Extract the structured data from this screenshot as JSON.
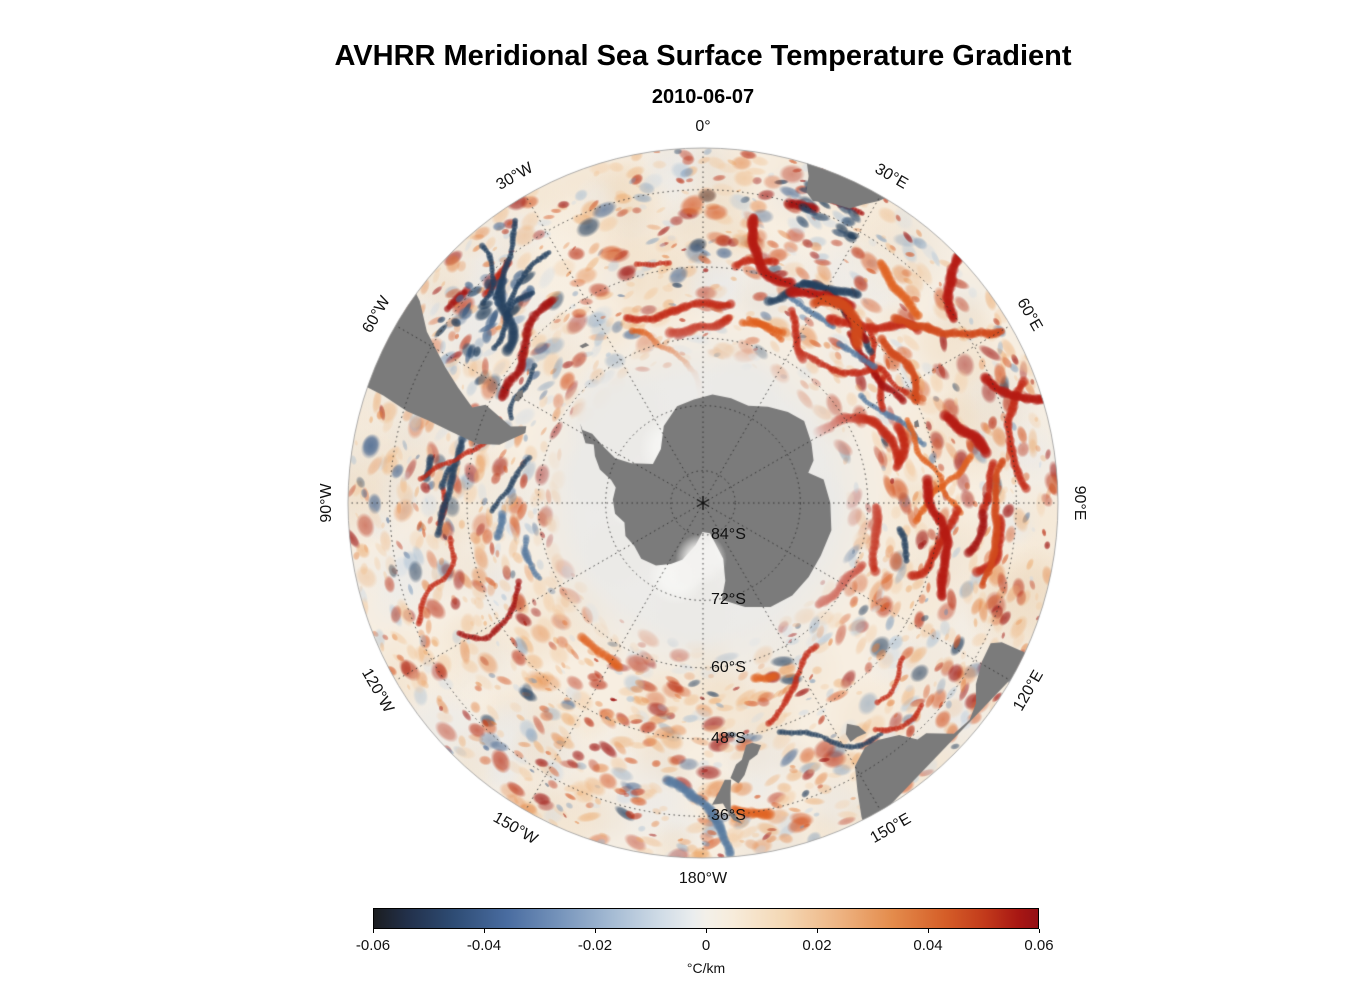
{
  "figure": {
    "title": "AVHRR Meridional Sea Surface Temperature Gradient",
    "subtitle": "2010-06-07"
  },
  "map": {
    "projection": "South polar stereographic, 0° longitude at top, boundary near 30°S",
    "pole_marker": "asterisk",
    "colors": {
      "ocean_base": "#f7eee1",
      "ice": "#ebeae7",
      "ice_bright": "#f8f8f6",
      "land": "#7b7b7b",
      "graticule": "#2a2a2a",
      "rim": "#999999"
    },
    "longitude_labels": [
      {
        "text": "0°",
        "azimuth_deg": 0
      },
      {
        "text": "30°E",
        "azimuth_deg": 30
      },
      {
        "text": "60°E",
        "azimuth_deg": 60
      },
      {
        "text": "90°E",
        "azimuth_deg": 90
      },
      {
        "text": "120°E",
        "azimuth_deg": 120
      },
      {
        "text": "150°E",
        "azimuth_deg": 150
      },
      {
        "text": "180°W",
        "azimuth_deg": 180
      },
      {
        "text": "150°W",
        "azimuth_deg": -150
      },
      {
        "text": "120°W",
        "azimuth_deg": -120
      },
      {
        "text": "90°W",
        "azimuth_deg": -90
      },
      {
        "text": "60°W",
        "azimuth_deg": -60
      },
      {
        "text": "30°W",
        "azimuth_deg": -30
      }
    ],
    "latitude_labels": [
      {
        "text": "84°S",
        "latitude_deg": -84
      },
      {
        "text": "72°S",
        "latitude_deg": -72
      },
      {
        "text": "60°S",
        "latitude_deg": -60
      },
      {
        "text": "48°S",
        "latitude_deg": -48
      },
      {
        "text": "36°S",
        "latitude_deg": -36
      }
    ],
    "graticule": {
      "latitude_rings_deg": [
        -84,
        -72,
        -60,
        -48,
        -36
      ],
      "longitude_step_deg": 30
    },
    "land": {
      "antarctica": [
        [
          -57,
          -63.2
        ],
        [
          -60,
          -64.5
        ],
        [
          -63,
          -65.8
        ],
        [
          -61.8,
          -67.2
        ],
        [
          -66.5,
          -68.3
        ],
        [
          -72,
          -70
        ],
        [
          -76,
          -72.5
        ],
        [
          -80,
          -73.6
        ],
        [
          -88,
          -73.3
        ],
        [
          -97,
          -73.6
        ],
        [
          -104,
          -75
        ],
        [
          -113,
          -74.4
        ],
        [
          -122,
          -75
        ],
        [
          -132,
          -74.6
        ],
        [
          -143,
          -75.5
        ],
        [
          -152,
          -77.2
        ],
        [
          -160,
          -78.8
        ],
        [
          -170,
          -82
        ],
        [
          -179,
          -84.6
        ],
        [
          167,
          -84.2
        ],
        [
          160,
          -79
        ],
        [
          164,
          -75
        ],
        [
          169,
          -71.8
        ],
        [
          158,
          -69.3
        ],
        [
          147,
          -67.2
        ],
        [
          136,
          -66.4
        ],
        [
          125,
          -66.3
        ],
        [
          114,
          -66.3
        ],
        [
          102,
          -65.9
        ],
        [
          90,
          -66.6
        ],
        [
          79,
          -67.4
        ],
        [
          74,
          -69.8
        ],
        [
          69,
          -68.2
        ],
        [
          61,
          -67.2
        ],
        [
          51,
          -66.1
        ],
        [
          43,
          -67.1
        ],
        [
          34,
          -68.6
        ],
        [
          25,
          -70.2
        ],
        [
          15,
          -70
        ],
        [
          5,
          -69.9
        ],
        [
          -5,
          -70.8
        ],
        [
          -15,
          -71.5
        ],
        [
          -27,
          -74
        ],
        [
          -38,
          -77.3
        ],
        [
          -52,
          -78.2
        ],
        [
          -61,
          -74.8
        ],
        [
          -63,
          -71.8
        ],
        [
          -60.5,
          -69
        ],
        [
          -58,
          -66
        ],
        [
          -58.8,
          -64.2
        ]
      ],
      "south_america": [
        [
          -70.8,
          -29
        ],
        [
          -71.4,
          -32.5
        ],
        [
          -72.8,
          -36.5
        ],
        [
          -73.3,
          -40
        ],
        [
          -74.2,
          -44
        ],
        [
          -75.3,
          -48.5
        ],
        [
          -74,
          -52
        ],
        [
          -71,
          -54
        ],
        [
          -68.5,
          -55.5
        ],
        [
          -66.5,
          -55.2
        ],
        [
          -68.3,
          -52.8
        ],
        [
          -65.7,
          -47.6
        ],
        [
          -67.5,
          -45.8
        ],
        [
          -64.8,
          -42.5
        ],
        [
          -62.2,
          -39.3
        ],
        [
          -58.2,
          -34.3
        ],
        [
          -54.5,
          -31
        ],
        [
          -53.3,
          -29
        ]
      ],
      "falkland_islands": [
        [
          -61.5,
          -51.4
        ],
        [
          -59.2,
          -51.2
        ],
        [
          -57.8,
          -51.8
        ],
        [
          -59.3,
          -52.4
        ],
        [
          -61.2,
          -52.2
        ]
      ],
      "south_georgia": [
        [
          -38.2,
          -54
        ],
        [
          -36.2,
          -54.2
        ],
        [
          -35.8,
          -54.9
        ],
        [
          -37.9,
          -54.6
        ]
      ],
      "africa": [
        [
          16.3,
          -28.6
        ],
        [
          17.9,
          -31.6
        ],
        [
          18.4,
          -33.9
        ],
        [
          20,
          -34.8
        ],
        [
          23.4,
          -34.1
        ],
        [
          26.5,
          -33.7
        ],
        [
          28.1,
          -32.4
        ],
        [
          30.2,
          -30.8
        ],
        [
          31.4,
          -29.3
        ],
        [
          32.2,
          -28.5
        ]
      ],
      "kerguelen": [
        [
          68.8,
          -48.9
        ],
        [
          70.6,
          -49.1
        ],
        [
          70.3,
          -49.8
        ],
        [
          69,
          -49.6
        ]
      ],
      "australia": [
        [
          114.9,
          -28.8
        ],
        [
          115,
          -33.6
        ],
        [
          116,
          -35
        ],
        [
          119.5,
          -34.9
        ],
        [
          123.6,
          -33.9
        ],
        [
          126.3,
          -32.3
        ],
        [
          129.1,
          -31.6
        ],
        [
          132.6,
          -32
        ],
        [
          135.9,
          -34.9
        ],
        [
          137.8,
          -35.1
        ],
        [
          139.8,
          -37.4
        ],
        [
          143.6,
          -38.8
        ],
        [
          146.5,
          -39
        ],
        [
          150,
          -37.4
        ],
        [
          151.8,
          -34
        ],
        [
          153.2,
          -30.5
        ],
        [
          153.6,
          -28.5
        ]
      ],
      "tasmania": [
        [
          144.6,
          -40.7
        ],
        [
          146.6,
          -41
        ],
        [
          148.3,
          -40.9
        ],
        [
          148.3,
          -42.3
        ],
        [
          146.9,
          -43.6
        ],
        [
          145.1,
          -42.3
        ]
      ],
      "new_zealand_south": [
        [
          166.5,
          -45.9
        ],
        [
          168.4,
          -46.6
        ],
        [
          169.9,
          -46.4
        ],
        [
          171.4,
          -44.2
        ],
        [
          172.8,
          -43.6
        ],
        [
          174.3,
          -41.6
        ],
        [
          172.8,
          -40.6
        ],
        [
          171.3,
          -41.8
        ],
        [
          169.8,
          -43.9
        ],
        [
          167.8,
          -44.6
        ]
      ],
      "new_zealand_north": [
        [
          174.2,
          -41.3
        ],
        [
          175.5,
          -41.4
        ],
        [
          177,
          -39.4
        ],
        [
          178.3,
          -37.7
        ],
        [
          176.2,
          -37.8
        ],
        [
          175.3,
          -36.3
        ],
        [
          174.5,
          -35.2
        ],
        [
          173,
          -34.5
        ],
        [
          174.8,
          -37
        ],
        [
          174.6,
          -39.2
        ]
      ]
    }
  },
  "colorbar": {
    "min": -0.06,
    "max": 0.06,
    "label": "°C/km",
    "ticks": [
      {
        "value": -0.06,
        "label": "-0.06"
      },
      {
        "value": -0.04,
        "label": "-0.04"
      },
      {
        "value": -0.02,
        "label": "-0.02"
      },
      {
        "value": 0,
        "label": "0"
      },
      {
        "value": 0.02,
        "label": "0.02"
      },
      {
        "value": 0.04,
        "label": "0.04"
      },
      {
        "value": 0.06,
        "label": "0.06"
      }
    ],
    "gradient_stops": [
      [
        0,
        "#1b1d20"
      ],
      [
        0.05,
        "#22304a"
      ],
      [
        0.12,
        "#2e4c74"
      ],
      [
        0.2,
        "#496ca0"
      ],
      [
        0.28,
        "#7694bb"
      ],
      [
        0.36,
        "#a6bcd4"
      ],
      [
        0.43,
        "#cfdbe6"
      ],
      [
        0.48,
        "#eaedee"
      ],
      [
        0.5,
        "#f3f0e9"
      ],
      [
        0.54,
        "#f7ecdb"
      ],
      [
        0.62,
        "#f4d7b3"
      ],
      [
        0.7,
        "#eeb483"
      ],
      [
        0.78,
        "#e48c4c"
      ],
      [
        0.86,
        "#d55e28"
      ],
      [
        0.92,
        "#c23a1b"
      ],
      [
        0.97,
        "#a81713"
      ],
      [
        1,
        "#941016"
      ]
    ]
  },
  "chart_data": {
    "type": "heatmap",
    "title": "AVHRR Meridional Sea Surface Temperature Gradient",
    "subtitle": "2010-06-07",
    "units": "°C/km",
    "value_range": [
      -0.06,
      0.06
    ],
    "colorbar_ticks": [
      -0.06,
      -0.04,
      -0.02,
      0,
      0.02,
      0.04,
      0.06
    ],
    "legend_position": "horizontal colorbar at bottom",
    "projection": "South polar stereographic centered on the South Pole, outer boundary near 30°S",
    "graticule": {
      "latitude_rings_deg_S": [
        84,
        72,
        60,
        48,
        36
      ],
      "longitude_spacing_deg": 30
    },
    "land_masses_shown": [
      "Antarctica",
      "southern South America",
      "southern Africa",
      "southern Australia",
      "Tasmania",
      "New Zealand"
    ],
    "field_description": "Mostly weak positive (cream/orange) meridional SST gradients over the Southern Ocean, with intense red filaments along the Antarctic Circumpolar Current — strongest in the sector south of Africa (Agulhas Return Current) and near South America (Brazil–Malvinas confluence) where dark navy negative filaments also appear; a pale gray winter sea-ice zone and gray Antarctic continent are masked at the center."
  }
}
